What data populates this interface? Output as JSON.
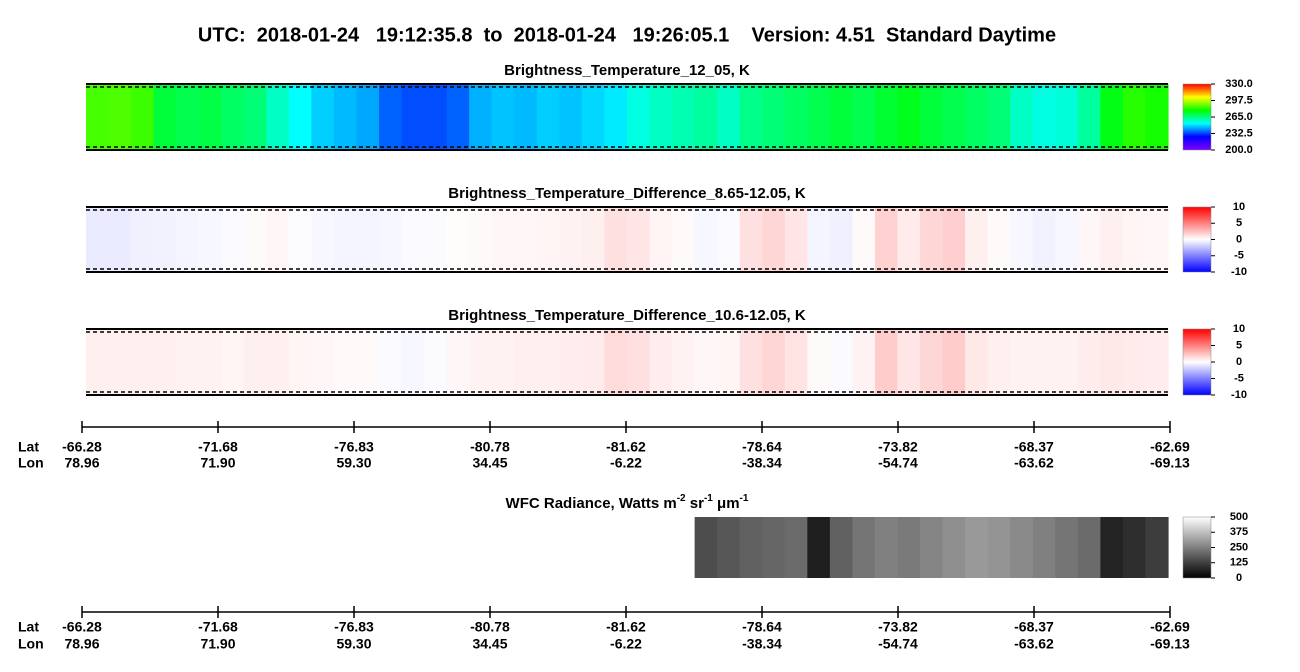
{
  "chart_data": {
    "type": "heatmap",
    "title": "UTC:  2018-01-24   19:12:35.8  to  2018-01-24   19:26:05.1    Version: 4.51  Standard Daytime",
    "panels": [
      {
        "title": "Brightness_Temperature_12_05, K",
        "colors": [
          "#8000ff",
          "#0000ff",
          "#00ffff",
          "#00ff00",
          "#ffff00",
          "#ff0000"
        ],
        "clim": [
          200,
          330
        ],
        "cticks": [
          {
            "value": 330,
            "label": "330.0"
          },
          {
            "value": 297.5,
            "label": "297.5"
          },
          {
            "value": 265,
            "label": "265.0"
          },
          {
            "value": 232.5,
            "label": "232.5"
          },
          {
            "value": 200,
            "label": "200.0"
          }
        ],
        "values": [
          285,
          286,
          284,
          272,
          270,
          271,
          268,
          266,
          258,
          252,
          247,
          245,
          243,
          236,
          234,
          234,
          236,
          244,
          246,
          245,
          247,
          246,
          248,
          250,
          255,
          258,
          260,
          262,
          258,
          264,
          266,
          268,
          270,
          272,
          270,
          273,
          275,
          272,
          270,
          268,
          266,
          258,
          255,
          256,
          262,
          276,
          282,
          280
        ]
      },
      {
        "title": "Brightness_Temperature_Difference_8.65-12.05, K",
        "colors": [
          "#0000ff",
          "#ffffff",
          "#ff0000"
        ],
        "clim": [
          -10,
          10
        ],
        "cticks": [
          10,
          5,
          0,
          -5,
          -10
        ],
        "values": [
          -0.8,
          -0.8,
          -0.6,
          -0.5,
          -0.4,
          -0.3,
          -0.2,
          0.2,
          0.3,
          -0.1,
          -0.3,
          -0.4,
          -0.4,
          -0.3,
          -0.2,
          -0.2,
          0.1,
          0.2,
          0.3,
          0.3,
          0.4,
          0.5,
          0.6,
          1.2,
          1.0,
          0.4,
          0.2,
          -0.3,
          -0.2,
          1.2,
          1.6,
          1.0,
          -0.4,
          -0.6,
          0.2,
          1.8,
          0.8,
          1.6,
          1.9,
          0.6,
          0.2,
          -0.3,
          -0.5,
          -0.3,
          0.3,
          0.6,
          0.4,
          0.3
        ]
      },
      {
        "title": "Brightness_Temperature_Difference_10.6-12.05, K",
        "colors": [
          "#0000ff",
          "#ffffff",
          "#ff0000"
        ],
        "clim": [
          -10,
          10
        ],
        "cticks": [
          10,
          5,
          0,
          -5,
          -10
        ],
        "values": [
          0.6,
          0.6,
          0.6,
          0.6,
          0.5,
          0.5,
          0.4,
          0.6,
          0.6,
          0.4,
          0.3,
          0.2,
          0.2,
          -0.2,
          -0.3,
          -0.2,
          0.3,
          0.5,
          0.5,
          0.6,
          0.6,
          0.7,
          0.8,
          1.4,
          1.2,
          0.7,
          0.5,
          0.3,
          0.4,
          1.2,
          1.6,
          1.1,
          0.2,
          -0.2,
          0.5,
          2.0,
          1.0,
          1.6,
          2.0,
          0.9,
          0.6,
          0.5,
          0.5,
          0.5,
          0.7,
          0.9,
          0.8,
          0.7
        ]
      },
      {
        "title_parts": [
          "WFC Radiance, Watts m",
          "-2",
          " sr",
          "-1",
          " μm",
          "-1"
        ],
        "colors": [
          "#000000",
          "#ffffff"
        ],
        "clim": [
          0,
          500
        ],
        "cticks": [
          500,
          375,
          250,
          125,
          0
        ],
        "values": [
          null,
          null,
          null,
          null,
          null,
          null,
          null,
          null,
          null,
          null,
          null,
          null,
          null,
          null,
          null,
          null,
          null,
          null,
          null,
          null,
          null,
          null,
          null,
          null,
          null,
          null,
          null,
          150,
          170,
          190,
          200,
          210,
          60,
          190,
          230,
          250,
          240,
          260,
          280,
          300,
          290,
          270,
          250,
          230,
          210,
          70,
          90,
          120
        ]
      }
    ],
    "x_axis": {
      "row_labels": [
        "Lat",
        "Lon"
      ],
      "lat": [
        -66.28,
        -71.68,
        -76.83,
        -80.78,
        -81.62,
        -78.64,
        -73.82,
        -68.37,
        -62.69
      ],
      "lon": [
        78.96,
        {
          "value": 71.9,
          "label": "71.90"
        },
        {
          "value": 59.3,
          "label": "59.30"
        },
        34.45,
        -6.22,
        -38.34,
        -54.74,
        -63.62,
        -69.13
      ]
    }
  }
}
